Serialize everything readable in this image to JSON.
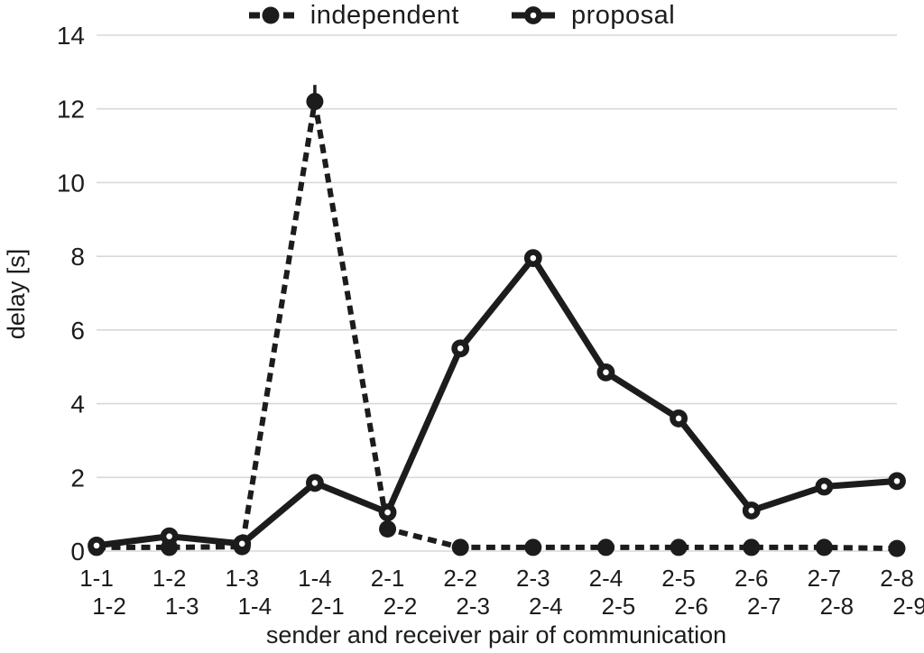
{
  "legend": {
    "items": [
      {
        "label": "independent",
        "marker": "filled-circle-dashed"
      },
      {
        "label": "proposal",
        "marker": "open-circle-solid"
      }
    ]
  },
  "chart_data": {
    "type": "line",
    "title": "",
    "xlabel": "sender and receiver pair of communication",
    "ylabel": "delay [s]",
    "ylim": [
      0,
      14
    ],
    "yticks": [
      0,
      2,
      4,
      6,
      8,
      10,
      12,
      14
    ],
    "grid": "horizontal-light-gray",
    "legend_position": "top-center",
    "categories": [
      {
        "line1": "1-1",
        "line2": "1-2"
      },
      {
        "line1": "1-2",
        "line2": "1-3"
      },
      {
        "line1": "1-3",
        "line2": "1-4"
      },
      {
        "line1": "1-4",
        "line2": "2-1"
      },
      {
        "line1": "2-1",
        "line2": "2-2"
      },
      {
        "line1": "2-2",
        "line2": "2-3"
      },
      {
        "line1": "2-3",
        "line2": "2-4"
      },
      {
        "line1": "2-4",
        "line2": "2-5"
      },
      {
        "line1": "2-5",
        "line2": "2-6"
      },
      {
        "line1": "2-6",
        "line2": "2-7"
      },
      {
        "line1": "2-7",
        "line2": "2-8"
      },
      {
        "line1": "2-8",
        "line2": "2-9"
      }
    ],
    "series": [
      {
        "name": "independent",
        "style": "dashed",
        "marker": "filled-circle",
        "values": [
          0.1,
          0.1,
          0.12,
          12.2,
          0.6,
          0.1,
          0.1,
          0.1,
          0.1,
          0.1,
          0.1,
          0.07
        ],
        "error_up": [
          0,
          0,
          0,
          0.45,
          0,
          0,
          0,
          0,
          0,
          0,
          0,
          0
        ]
      },
      {
        "name": "proposal",
        "style": "solid",
        "marker": "open-circle",
        "values": [
          0.15,
          0.4,
          0.2,
          1.85,
          1.05,
          5.5,
          7.95,
          4.85,
          3.6,
          1.1,
          1.75,
          1.9
        ],
        "error_up": [
          0,
          0,
          0,
          0,
          0,
          0,
          0,
          0,
          0,
          0,
          0,
          0
        ]
      }
    ],
    "colors": {
      "line": "#1c1c1c",
      "grid": "#d8d8d8",
      "background": "#ffffff"
    }
  }
}
